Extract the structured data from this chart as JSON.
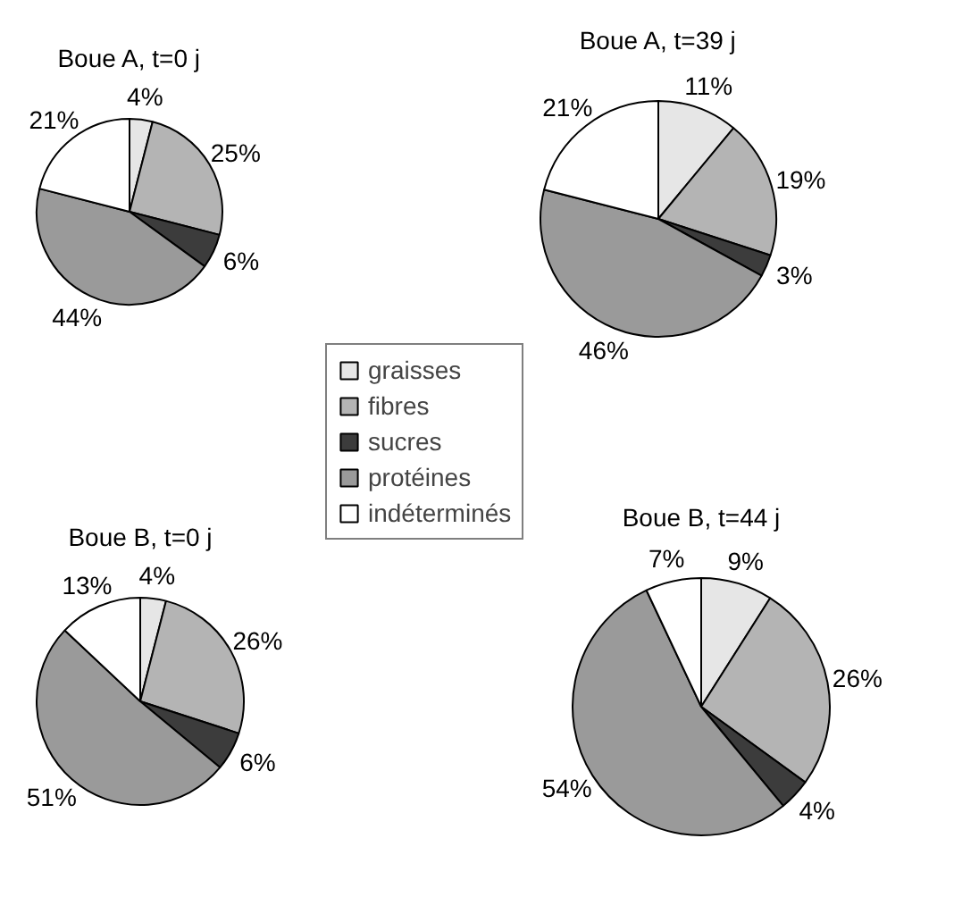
{
  "chart_data": [
    {
      "type": "pie",
      "title": "Boue A, t=0 j",
      "categories": [
        "graisses",
        "fibres",
        "sucres",
        "protéines",
        "indéterminés"
      ],
      "values": [
        4,
        25,
        6,
        44,
        21
      ],
      "value_labels": [
        "4%",
        "25%",
        "6%",
        "44%",
        "21%"
      ],
      "colors": [
        "#e6e6e6",
        "#b4b4b4",
        "#3c3c3c",
        "#9a9a9a",
        "#ffffff"
      ],
      "legend": "bottom right"
    },
    {
      "type": "pie",
      "title": "Boue A, t=39 j",
      "categories": [
        null,
        null,
        null,
        null,
        null
      ],
      "values": [
        11,
        19,
        3,
        46,
        21
      ],
      "value_labels": [
        "11%",
        "19%",
        "3%",
        "46%",
        "21%"
      ],
      "colors": [
        "#e6e6e6",
        "#b4b4b4",
        "#3c3c3c",
        "#9a9a9a",
        "#ffffff"
      ]
    },
    {
      "type": "pie",
      "title": "Boue B, t=0 j",
      "categories": [
        null,
        null,
        null,
        null,
        null
      ],
      "values": [
        4,
        26,
        6,
        51,
        13
      ],
      "value_labels": [
        "4%",
        "26%",
        "6%",
        "51%",
        "13%"
      ],
      "colors": [
        "#e6e6e6",
        "#b4b4b4",
        "#3c3c3c",
        "#9a9a9a",
        "#ffffff"
      ]
    },
    {
      "type": "pie",
      "title": "Boue B, t=44 j",
      "categories": [
        null,
        null,
        null,
        null,
        null
      ],
      "values": [
        9,
        26,
        4,
        54,
        7
      ],
      "value_labels": [
        "9%",
        "26%",
        "4%",
        "54%",
        "7%"
      ],
      "colors": [
        "#e6e6e6",
        "#b4b4b4",
        "#3c3c3c",
        "#9a9a9a",
        "#ffffff"
      ]
    }
  ]
}
